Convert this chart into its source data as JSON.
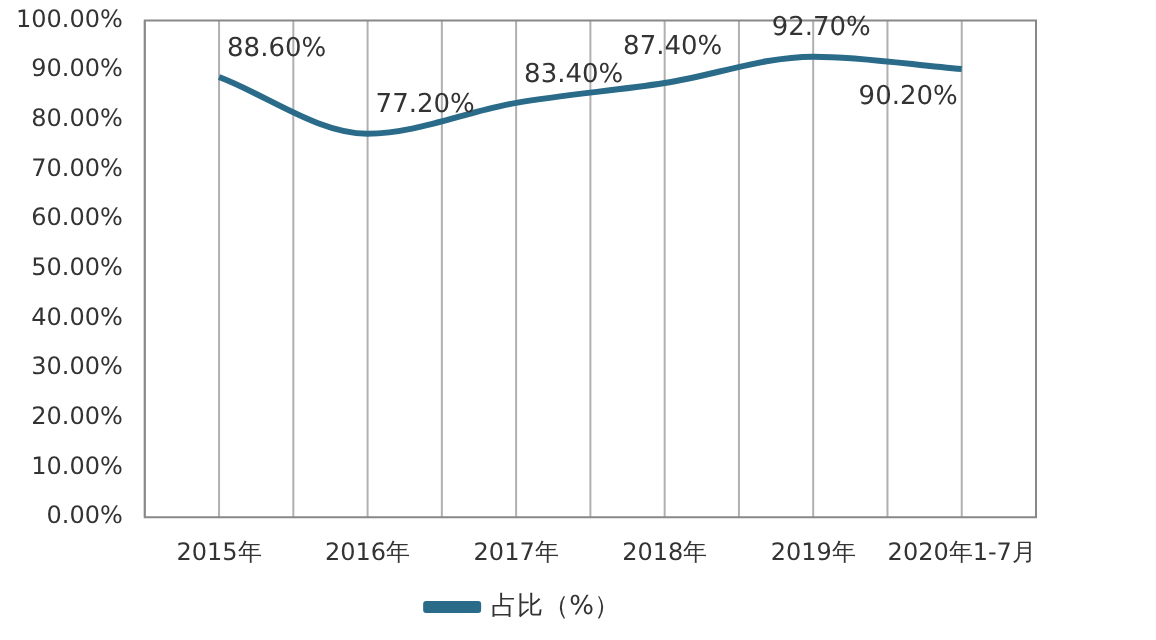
{
  "chart_data": {
    "type": "line",
    "categories": [
      "2015年",
      "2016年",
      "2017年",
      "2018年",
      "2019年",
      "2020年1-7月"
    ],
    "series": [
      {
        "name": "占比（%）",
        "color": "#2a6b8a",
        "values": [
          88.6,
          77.2,
          83.4,
          87.4,
          92.7,
          90.2
        ],
        "value_labels": [
          "88.60%",
          "77.20%",
          "83.40%",
          "87.40%",
          "92.70%",
          "90.20%"
        ]
      }
    ],
    "ylim": [
      0,
      100
    ],
    "yticks": [
      {
        "value": 0,
        "label": "0.00%"
      },
      {
        "value": 10,
        "label": "10.00%"
      },
      {
        "value": 20,
        "label": "20.00%"
      },
      {
        "value": 30,
        "label": "30.00%"
      },
      {
        "value": 40,
        "label": "40.00%"
      },
      {
        "value": 50,
        "label": "50.00%"
      },
      {
        "value": 60,
        "label": "60.00%"
      },
      {
        "value": 70,
        "label": "70.00%"
      },
      {
        "value": 80,
        "label": "80.00%"
      },
      {
        "value": 90,
        "label": "90.00%"
      },
      {
        "value": 100,
        "label": "100.00%"
      }
    ],
    "grid": "x",
    "legend": "bottom",
    "marker": "none",
    "line_style": "solid"
  }
}
